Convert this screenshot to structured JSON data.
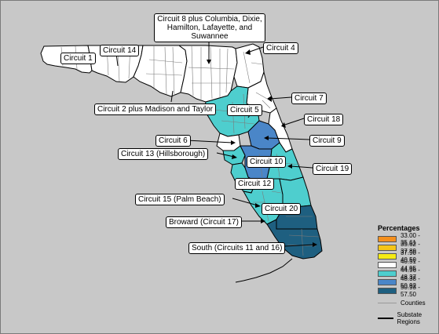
{
  "legend": {
    "title": "Percentages",
    "bins": [
      {
        "label": "33.00 - 35.61",
        "color": "#f5901e"
      },
      {
        "label": "35.62 - 37.89",
        "color": "#f5c518"
      },
      {
        "label": "37.90 - 40.50",
        "color": "#f5eb14"
      },
      {
        "label": "40.51 - 44.95",
        "color": "#ffffff"
      },
      {
        "label": "44.96 - 48.37",
        "color": "#4ecece"
      },
      {
        "label": "48.38 - 50.92",
        "color": "#4a86c8"
      },
      {
        "label": "50.93 - 57.50",
        "color": "#1e5f80"
      }
    ],
    "counties_label": "Counties",
    "substate_label": "Substate Regions"
  },
  "callouts": {
    "circuit_8": "Circuit 8 plus Columbia, Dixie, Hamilton, Lafayette, and Suwannee",
    "circuit_1": "Circuit 1",
    "circuit_14": "Circuit 14",
    "circuit_4": "Circuit 4",
    "circuit_2": "Circuit 2 plus Madison and Taylor",
    "circuit_7": "Circuit 7",
    "circuit_5": "Circuit 5",
    "circuit_18": "Circuit 18",
    "circuit_6": "Circuit 6",
    "circuit_9": "Circuit 9",
    "circuit_13": "Circuit 13 (Hillsborough)",
    "circuit_10": "Circuit 10",
    "circuit_19": "Circuit 19",
    "circuit_12": "Circuit 12",
    "circuit_15": "Circuit 15 (Palm Beach)",
    "circuit_20": "Circuit 20",
    "circuit_17": "Broward (Circuit 17)",
    "circuit_south": "South (Circuits 11 and 16)"
  },
  "regions": [
    {
      "id": "circuit_1",
      "color": "#ffffff"
    },
    {
      "id": "circuit_14",
      "color": "#ffffff"
    },
    {
      "id": "circuit_2",
      "color": "#ffffff"
    },
    {
      "id": "circuit_8",
      "color": "#ffffff"
    },
    {
      "id": "circuit_4",
      "color": "#ffffff"
    },
    {
      "id": "circuit_7",
      "color": "#ffffff"
    },
    {
      "id": "circuit_5",
      "color": "#4ecece"
    },
    {
      "id": "circuit_18",
      "color": "#ffffff"
    },
    {
      "id": "circuit_6",
      "color": "#ffffff"
    },
    {
      "id": "circuit_9",
      "color": "#4a86c8"
    },
    {
      "id": "circuit_13",
      "color": "#4ecece"
    },
    {
      "id": "circuit_10",
      "color": "#4a86c8"
    },
    {
      "id": "circuit_19",
      "color": "#4ecece"
    },
    {
      "id": "circuit_12",
      "color": "#4ecece"
    },
    {
      "id": "circuit_20",
      "color": "#4ecece"
    },
    {
      "id": "circuit_15",
      "color": "#4ecece"
    },
    {
      "id": "circuit_17",
      "color": "#1e5f80"
    },
    {
      "id": "circuit_south",
      "color": "#1e5f80"
    }
  ]
}
